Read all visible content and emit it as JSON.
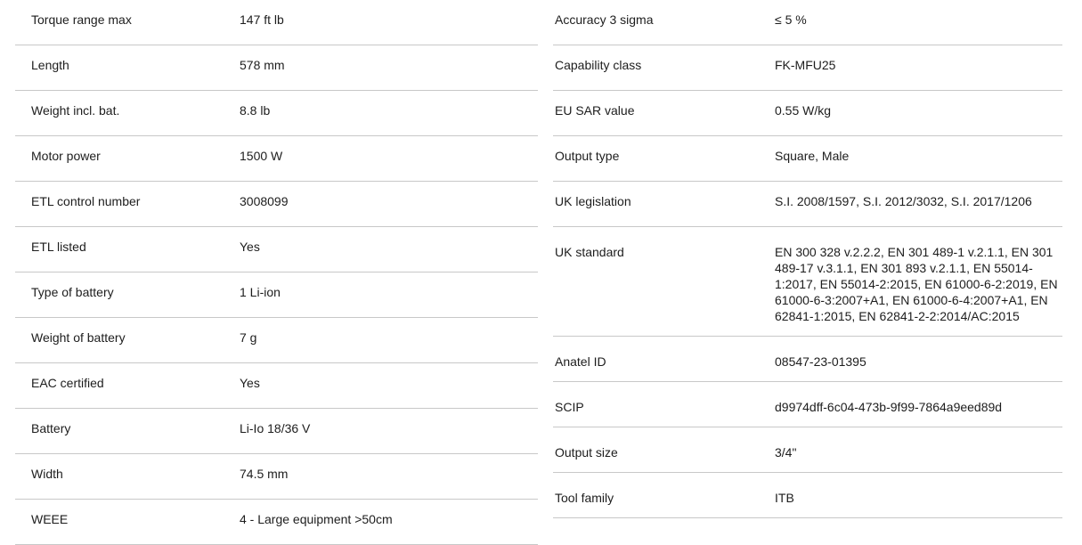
{
  "page": {
    "background_color": "#ffffff",
    "divider_color": "#c8c8c8",
    "text_color": "#1d1d1d"
  },
  "spec": {
    "columns": [
      {
        "side": "left",
        "rows": [
          {
            "label": "Torque range max",
            "value": "147 ft lb"
          },
          {
            "label": "Length",
            "value": "578 mm"
          },
          {
            "label": "Weight incl. bat.",
            "value": "8.8 lb"
          },
          {
            "label": "Motor power",
            "value": "1500 W"
          },
          {
            "label": "ETL control number",
            "value": "3008099"
          },
          {
            "label": "ETL listed",
            "value": "Yes"
          },
          {
            "label": "Type of battery",
            "value": "1 Li-ion"
          },
          {
            "label": "Weight of battery",
            "value": "7 g"
          },
          {
            "label": "EAC certified",
            "value": "Yes"
          },
          {
            "label": "Battery",
            "value": "Li-Io 18/36 V"
          },
          {
            "label": "Width",
            "value": "74.5 mm"
          },
          {
            "label": "WEEE",
            "value": "4 - Large equipment >50cm"
          }
        ]
      },
      {
        "side": "right",
        "rows": [
          {
            "label": "Accuracy 3 sigma",
            "value": "≤ 5 %"
          },
          {
            "label": "Capability class",
            "value": "FK-MFU25"
          },
          {
            "label": "EU SAR value",
            "value": "0.55 W/kg"
          },
          {
            "label": "Output type",
            "value": "Square, Male"
          },
          {
            "label": "UK legislation",
            "value": "S.I. 2008/1597, S.I. 2012/3032, S.I. 2017/1206"
          },
          {
            "label": "UK standard",
            "value": "EN 300 328 v.2.2.2, EN 301 489-1 v.2.1.1, EN 301 489-17 v.3.1.1, EN 301 893 v.2.1.1, EN 55014-1:2017, EN 55014-2:2015, EN 61000-6-2:2019, EN 61000-6-3:2007+A1, EN 61000-6-4:2007+A1, EN 62841-1:2015, EN 62841-2-2:2014/AC:2015"
          },
          {
            "label": "Anatel ID",
            "value": "08547-23-01395"
          },
          {
            "label": "SCIP",
            "value": "d9974dff-6c04-473b-9f99-7864a9eed89d"
          },
          {
            "label": "Output size",
            "value": "3/4\""
          },
          {
            "label": "Tool family",
            "value": "ITB"
          }
        ]
      }
    ]
  }
}
